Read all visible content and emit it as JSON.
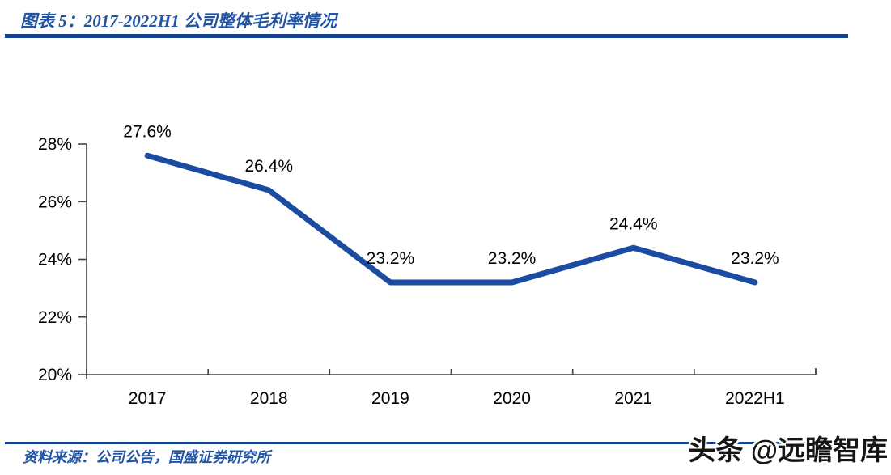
{
  "header": {
    "title": "图表 5：2017-2022H1 公司整体毛利率情况"
  },
  "footer": {
    "source": "资料来源：公司公告，国盛证券研究所",
    "watermark": "头条 @远瞻智库"
  },
  "colors": {
    "title_blue": "#2254A5",
    "rule_blue": "#15418F",
    "series_blue": "#1B4CA1",
    "axis_gray": "#444444",
    "label_black": "#000000"
  },
  "chart_data": {
    "type": "line",
    "title": "2017-2022H1 公司整体毛利率情况",
    "categories": [
      "2017",
      "2018",
      "2019",
      "2020",
      "2021",
      "2022H1"
    ],
    "values": [
      27.6,
      26.4,
      23.2,
      23.2,
      24.4,
      23.2
    ],
    "point_labels": [
      "27.6%",
      "26.4%",
      "23.2%",
      "23.2%",
      "24.4%",
      "23.2%"
    ],
    "xlabel": "",
    "ylabel": "",
    "ylim": [
      20,
      28
    ],
    "yticks": [
      20,
      22,
      24,
      26,
      28
    ],
    "ytick_labels": [
      "20%",
      "22%",
      "24%",
      "26%",
      "28%"
    ],
    "grid": false,
    "legend": "none",
    "series_name": "整体毛利率"
  }
}
